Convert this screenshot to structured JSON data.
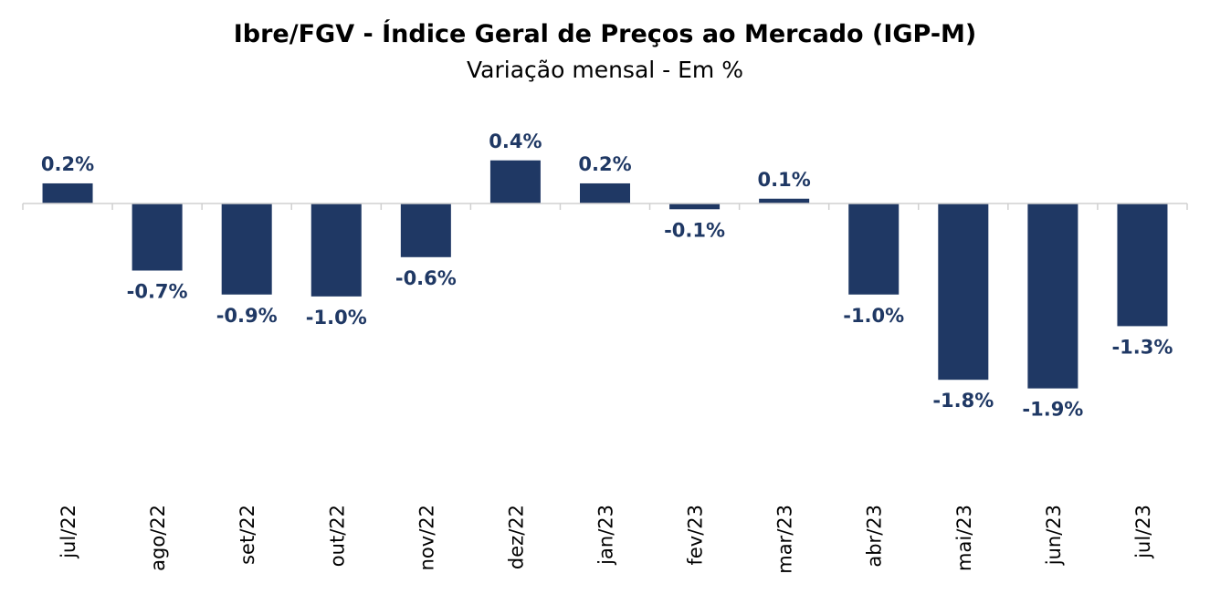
{
  "chart_data": {
    "type": "bar",
    "title": "Ibre/FGV - Índice Geral de Preços ao Mercado (IGP-M)",
    "subtitle": "Variação mensal - Em %",
    "categories": [
      "jul/22",
      "ago/22",
      "set/22",
      "out/22",
      "nov/22",
      "dez/22",
      "jan/23",
      "fev/23",
      "mar/23",
      "abr/23",
      "mai/23",
      "jun/23",
      "jul/23"
    ],
    "values": [
      0.21,
      -0.7,
      -0.95,
      -0.97,
      -0.56,
      0.45,
      0.21,
      -0.06,
      0.05,
      -0.95,
      -1.84,
      -1.93,
      -1.28
    ],
    "data_labels": [
      "0.2%",
      "-0.7%",
      "-0.9%",
      "-1.0%",
      "-0.6%",
      "0.4%",
      "0.2%",
      "-0.1%",
      "0.1%",
      "-1.0%",
      "-1.8%",
      "-1.9%",
      "-1.3%"
    ],
    "xlabel": "",
    "ylabel": "",
    "grid": false,
    "legend": "none",
    "colors": {
      "bar": "#1f3864",
      "label": "#1f3864",
      "axis": "#d0d0d0"
    }
  }
}
